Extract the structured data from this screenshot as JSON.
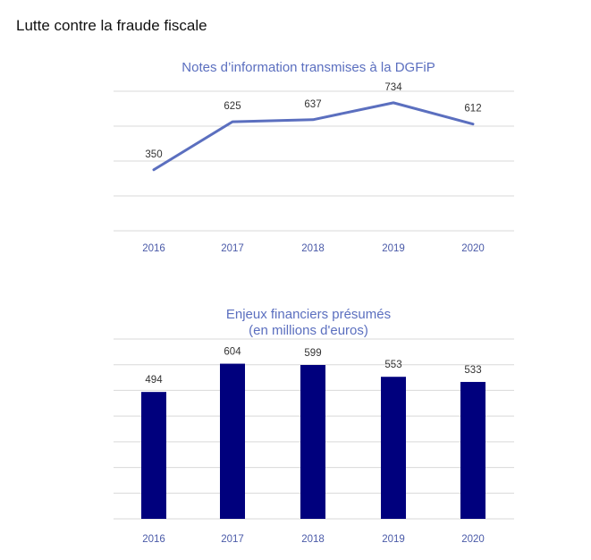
{
  "page": {
    "title": "Lutte contre la fraude fiscale"
  },
  "colors": {
    "line": "#5b6fbf",
    "bar": "#00007d",
    "title": "#5b6fbf",
    "tick": "#4a5aa8",
    "grid": "#d9d9d9",
    "label": "#333333"
  },
  "chart_data": [
    {
      "type": "line",
      "title": "Notes d’information transmises à la DGFiP",
      "categories": [
        "2016",
        "2017",
        "2018",
        "2019",
        "2020"
      ],
      "values": [
        350,
        625,
        637,
        734,
        612
      ],
      "ylim": [
        0,
        800
      ],
      "grid": true,
      "xlabel": "",
      "ylabel": ""
    },
    {
      "type": "bar",
      "title_lines": [
        "Enjeux financiers présumés",
        "(en millions d'euros)"
      ],
      "categories": [
        "2016",
        "2017",
        "2018",
        "2019",
        "2020"
      ],
      "values": [
        494,
        604,
        599,
        553,
        533
      ],
      "ylim": [
        0,
        700
      ],
      "grid": true,
      "xlabel": "",
      "ylabel": ""
    }
  ]
}
